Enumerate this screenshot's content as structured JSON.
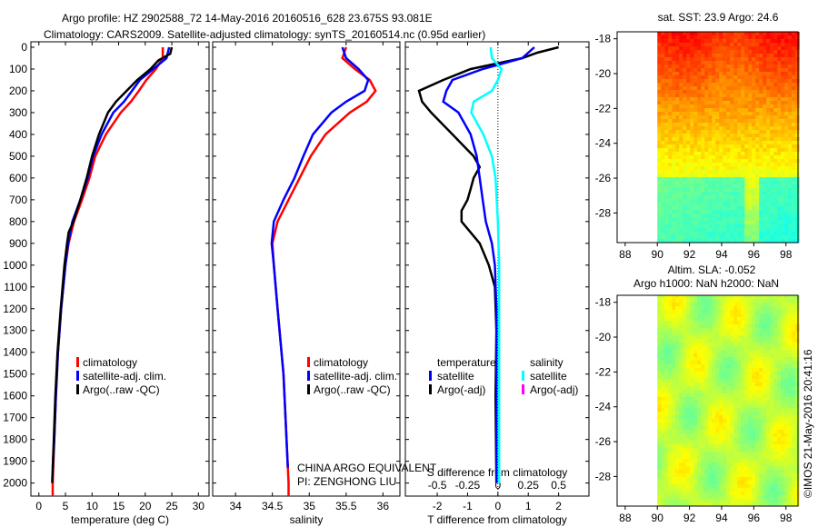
{
  "title": {
    "line1": "Argo profile: HZ 2902588_72 14-May-2016 20160516_628 23.675S 93.081E",
    "line2": "Climatology: CARS2009. Satellite-adjusted climatology: synTS_20160514.nc (0.95d earlier)"
  },
  "colors": {
    "climatology": "#ff0000",
    "satellite": "#0000ff",
    "argo": "#000000",
    "sal_satellite": "#00ffff",
    "sal_argo": "#ff00ff"
  },
  "chart_data": [
    {
      "type": "line",
      "xlabel": "temperature (deg C)",
      "ylabel": "",
      "xlim": [
        -1.5,
        32
      ],
      "ylim": [
        2060,
        -25
      ],
      "xticks": [
        "0",
        "5",
        "10",
        "15",
        "20",
        "25",
        "30"
      ],
      "xtick_values": [
        0,
        5,
        10,
        15,
        20,
        25,
        30
      ],
      "yticks": [
        "0",
        "100",
        "200",
        "300",
        "400",
        "500",
        "600",
        "700",
        "800",
        "900",
        "1000",
        "1100",
        "1200",
        "1300",
        "1400",
        "1500",
        "1600",
        "1700",
        "1800",
        "1900",
        "2000"
      ],
      "legend": [
        "climatology",
        "satellite-adj. clim.",
        "Argo(..raw -QC)"
      ],
      "series": [
        {
          "name": "climatology",
          "depth": [
            0,
            50,
            100,
            150,
            200,
            250,
            300,
            400,
            500,
            600,
            700,
            800,
            900,
            1000,
            1200,
            1400,
            1600,
            1800,
            2000,
            2060
          ],
          "values": [
            23.3,
            23.3,
            22,
            20.2,
            18.8,
            17.3,
            15.4,
            12.6,
            10.6,
            9.5,
            8.1,
            6.6,
            5.6,
            5,
            4.2,
            3.6,
            3.2,
            2.9,
            2.6,
            2.6
          ]
        },
        {
          "name": "satellite-adj. clim.",
          "depth": [
            0,
            50,
            100,
            150,
            200,
            250,
            300,
            400,
            500,
            600,
            700,
            800,
            900,
            1000,
            1200,
            1400,
            1600,
            1800,
            1930
          ],
          "values": [
            24.5,
            24,
            21.5,
            19,
            17.5,
            16,
            14,
            11.8,
            10.2,
            9.2,
            7.8,
            6.3,
            5.5,
            5,
            4.2,
            3.6,
            3.2,
            2.9,
            2.6
          ]
        },
        {
          "name": "Argo(..raw -QC)",
          "depth": [
            0,
            30,
            60,
            100,
            150,
            200,
            250,
            300,
            400,
            500,
            600,
            700,
            800,
            850,
            900,
            1000,
            1200,
            1400,
            1600,
            1800,
            2000
          ],
          "values": [
            25,
            24.7,
            22.5,
            21,
            18.5,
            16.5,
            14.5,
            13,
            11.3,
            10,
            9,
            7.8,
            6.5,
            5.6,
            5.3,
            4.8,
            4.1,
            3.5,
            3.1,
            2.8,
            2.5
          ]
        }
      ]
    },
    {
      "type": "line",
      "xlabel": "salinity",
      "xlim": [
        33.69,
        36.23
      ],
      "ylim": [
        2060,
        -25
      ],
      "xticks": [
        "34",
        "34.5",
        "35",
        "35.5",
        "36"
      ],
      "xtick_values": [
        34,
        34.5,
        35,
        35.5,
        36
      ],
      "legend": [
        "climatology",
        "satellite-adj. clim.",
        "Argo(..raw -QC)"
      ],
      "series": [
        {
          "name": "climatology",
          "depth": [
            0,
            50,
            100,
            150,
            200,
            250,
            300,
            400,
            500,
            600,
            700,
            800,
            900,
            1000,
            1200,
            1500,
            2000,
            2060
          ],
          "values": [
            35.5,
            35.45,
            35.62,
            35.82,
            35.9,
            35.78,
            35.55,
            35.22,
            35.02,
            34.87,
            34.72,
            34.57,
            34.5,
            34.52,
            34.57,
            34.65,
            34.72,
            34.72
          ]
        },
        {
          "name": "satellite-adj. clim.",
          "depth": [
            0,
            50,
            100,
            150,
            200,
            250,
            300,
            400,
            500,
            600,
            700,
            800,
            900,
            1000,
            1200,
            1500,
            1930
          ],
          "values": [
            35.45,
            35.5,
            35.67,
            35.8,
            35.75,
            35.5,
            35.3,
            35.05,
            34.92,
            34.8,
            34.65,
            34.52,
            34.49,
            34.52,
            34.57,
            34.65,
            34.71
          ]
        }
      ],
      "annotations": [
        "CHINA ARGO EQUIVALENT",
        "PI: ZENGHONG LIU"
      ]
    },
    {
      "type": "line",
      "xlabel": "T difference from climatology",
      "x2label": "S difference from climatology",
      "xlim": [
        -3.05,
        3.0
      ],
      "ylim": [
        2060,
        -25
      ],
      "xticks": [
        "-2",
        "-1",
        "0",
        "1",
        "2"
      ],
      "xtick_values": [
        -2,
        -1,
        0,
        1,
        2
      ],
      "x2ticks": [
        "-0.5",
        "-0.25",
        "0",
        "0.25",
        "0.5"
      ],
      "x2tick_values": [
        -0.5,
        -0.25,
        0,
        0.25,
        0.5
      ],
      "legend": {
        "temperature_header": "temperature",
        "salinity_header": "salinity",
        "t_sat": "satellite",
        "t_argo": "Argo(-adj)",
        "s_sat": "satellite",
        "s_argo": "Argo(-adj)"
      },
      "series": [
        {
          "name": "T Argo(-adj)",
          "axis": "T",
          "depth": [
            0,
            25,
            50,
            100,
            150,
            200,
            250,
            300,
            400,
            500,
            550,
            600,
            650,
            700,
            750,
            800,
            850,
            900,
            1000,
            1100,
            1300,
            1600,
            2000
          ],
          "values": [
            2,
            1.3,
            0.8,
            -0.9,
            -1.8,
            -2.6,
            -2.5,
            -2.2,
            -1.5,
            -0.8,
            -0.6,
            -0.8,
            -0.9,
            -1.0,
            -1.2,
            -1.2,
            -0.9,
            -0.6,
            -0.3,
            -0.1,
            -0.05,
            -0.08,
            -0.05
          ]
        },
        {
          "name": "T satellite",
          "axis": "T",
          "depth": [
            0,
            50,
            100,
            150,
            200,
            250,
            300,
            400,
            500,
            600,
            700,
            800,
            900,
            1000,
            1200,
            1600,
            2000
          ],
          "values": [
            1.2,
            0.8,
            -0.5,
            -1.5,
            -1.7,
            -1.8,
            -1.3,
            -0.9,
            -0.7,
            -0.6,
            -0.5,
            -0.4,
            -0.2,
            -0.1,
            -0.05,
            -0.05,
            -0.05
          ]
        },
        {
          "name": "S satellite",
          "axis": "S",
          "depth": [
            0,
            50,
            100,
            150,
            200,
            250,
            300,
            400,
            500,
            600,
            800,
            1000,
            1500,
            2000
          ],
          "values": [
            -0.06,
            -0.05,
            0.03,
            0.0,
            -0.05,
            -0.2,
            -0.22,
            -0.12,
            -0.05,
            -0.02,
            0,
            0.01,
            0.01,
            0.01
          ]
        }
      ]
    }
  ],
  "maps": {
    "top": {
      "title": "sat. SST: 23.9 Argo: 24.6",
      "xticks": [
        "88",
        "90",
        "92",
        "94",
        "96",
        "98"
      ],
      "yticks": [
        "-18",
        "-20",
        "-22",
        "-24",
        "-26",
        "-28"
      ]
    },
    "bottom": {
      "title1": "Altim. SLA: -0.052",
      "title2": "Argo h1000: NaN h2000: NaN",
      "xticks": [
        "88",
        "90",
        "92",
        "94",
        "96",
        "98"
      ],
      "yticks": [
        "-18",
        "-20",
        "-22",
        "-24",
        "-26",
        "-28"
      ]
    }
  },
  "credit": "©IMOS 21-May-2016 20:41:16"
}
